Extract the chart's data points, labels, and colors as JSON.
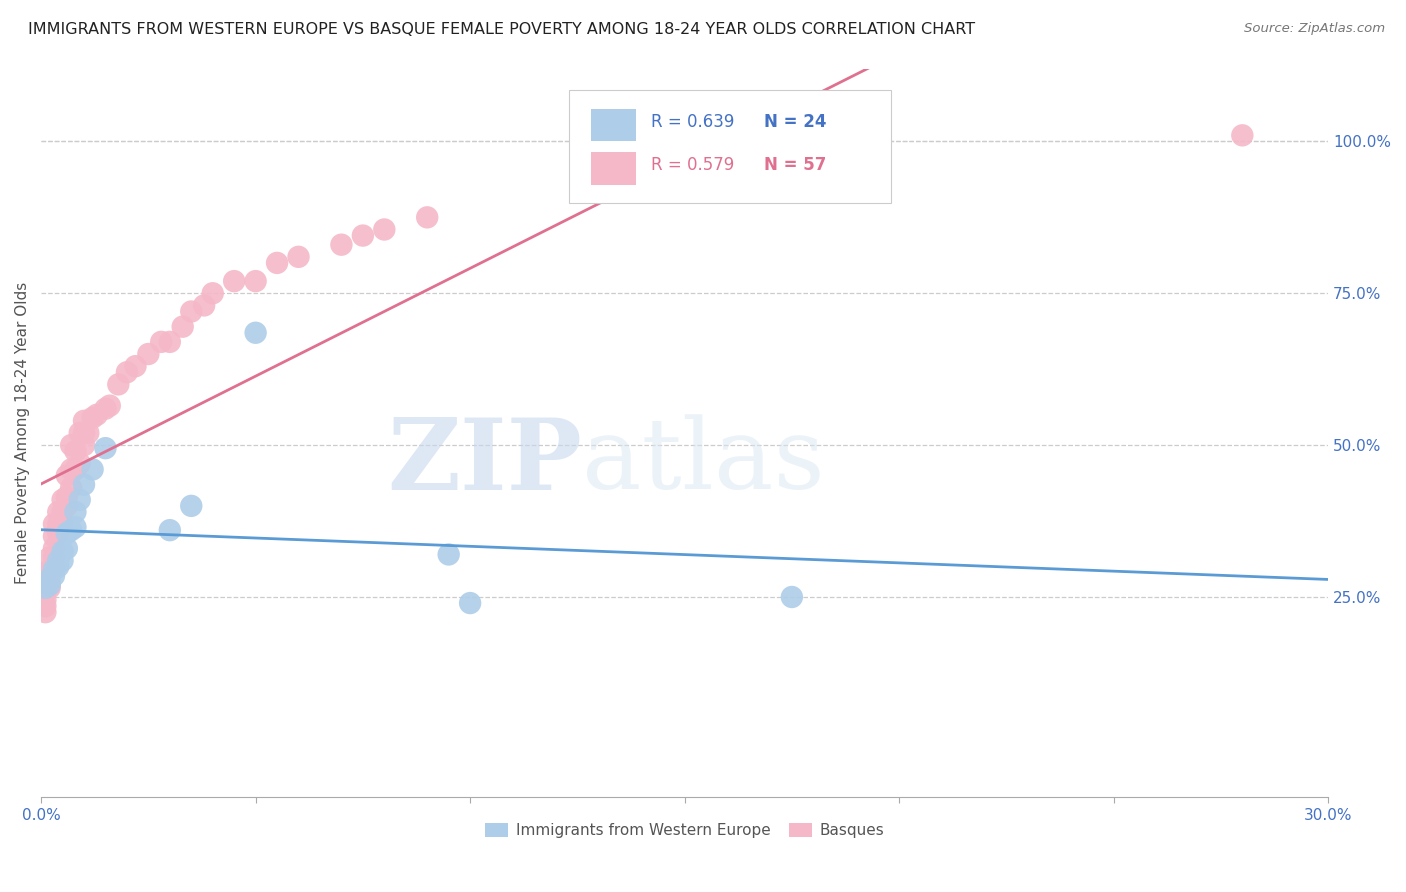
{
  "title": "IMMIGRANTS FROM WESTERN EUROPE VS BASQUE FEMALE POVERTY AMONG 18-24 YEAR OLDS CORRELATION CHART",
  "source": "Source: ZipAtlas.com",
  "ylabel": "Female Poverty Among 18-24 Year Olds",
  "y_ticks_right": [
    0.25,
    0.5,
    0.75,
    1.0
  ],
  "y_tick_labels_right": [
    "25.0%",
    "50.0%",
    "75.0%",
    "100.0%"
  ],
  "xlim": [
    0.0,
    0.3
  ],
  "ylim": [
    -0.08,
    1.12
  ],
  "blue_R": 0.639,
  "blue_N": 24,
  "pink_R": 0.579,
  "pink_N": 57,
  "legend_labels": [
    "Immigrants from Western Europe",
    "Basques"
  ],
  "blue_color": "#aecde8",
  "pink_color": "#f5b8c8",
  "blue_line_color": "#5b9bd5",
  "pink_line_color": "#e07090",
  "watermark_zip": "ZIP",
  "watermark_atlas": "atlas",
  "blue_dots_x": [
    0.001,
    0.002,
    0.002,
    0.003,
    0.003,
    0.004,
    0.004,
    0.005,
    0.005,
    0.006,
    0.006,
    0.007,
    0.008,
    0.008,
    0.009,
    0.01,
    0.012,
    0.015,
    0.03,
    0.035,
    0.05,
    0.095,
    0.1,
    0.175
  ],
  "blue_dots_y": [
    0.265,
    0.27,
    0.28,
    0.285,
    0.295,
    0.3,
    0.31,
    0.31,
    0.325,
    0.33,
    0.355,
    0.36,
    0.365,
    0.39,
    0.41,
    0.435,
    0.46,
    0.495,
    0.36,
    0.4,
    0.685,
    0.32,
    0.24,
    0.25
  ],
  "pink_dots_x": [
    0.001,
    0.001,
    0.001,
    0.001,
    0.001,
    0.002,
    0.002,
    0.002,
    0.002,
    0.003,
    0.003,
    0.003,
    0.003,
    0.003,
    0.004,
    0.004,
    0.004,
    0.005,
    0.005,
    0.005,
    0.006,
    0.006,
    0.006,
    0.007,
    0.007,
    0.007,
    0.008,
    0.008,
    0.009,
    0.009,
    0.01,
    0.01,
    0.01,
    0.011,
    0.012,
    0.013,
    0.015,
    0.016,
    0.018,
    0.02,
    0.022,
    0.025,
    0.028,
    0.03,
    0.033,
    0.035,
    0.038,
    0.04,
    0.045,
    0.05,
    0.055,
    0.06,
    0.07,
    0.075,
    0.08,
    0.09,
    0.28
  ],
  "pink_dots_y": [
    0.225,
    0.235,
    0.245,
    0.26,
    0.29,
    0.265,
    0.27,
    0.29,
    0.315,
    0.3,
    0.315,
    0.33,
    0.35,
    0.37,
    0.355,
    0.37,
    0.39,
    0.37,
    0.39,
    0.41,
    0.4,
    0.415,
    0.45,
    0.43,
    0.46,
    0.5,
    0.46,
    0.49,
    0.47,
    0.52,
    0.5,
    0.52,
    0.54,
    0.52,
    0.545,
    0.55,
    0.56,
    0.565,
    0.6,
    0.62,
    0.63,
    0.65,
    0.67,
    0.67,
    0.695,
    0.72,
    0.73,
    0.75,
    0.77,
    0.77,
    0.8,
    0.81,
    0.83,
    0.845,
    0.855,
    0.875,
    1.01
  ]
}
